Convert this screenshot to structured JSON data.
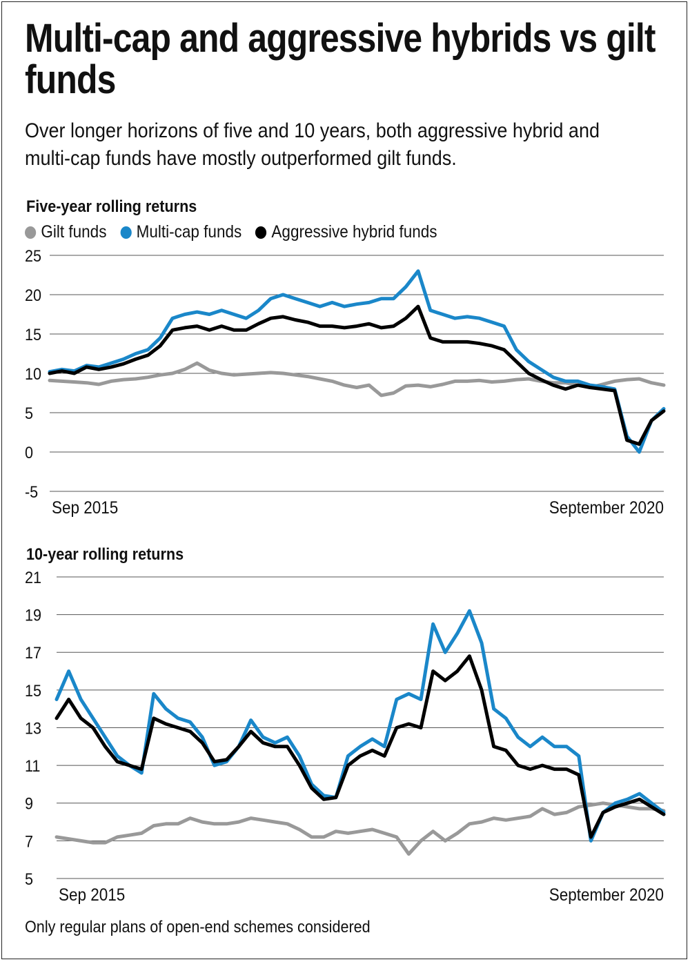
{
  "title": "Multi-cap and aggressive hybrids vs gilt funds",
  "subtitle": "Over longer horizons of five and 10 years, both aggressive hybrid and multi-cap funds have mostly outperformed gilt funds.",
  "footnote": "Only regular plans of open-end schemes considered",
  "legend": [
    {
      "name": "Gilt funds",
      "color": "#999999"
    },
    {
      "name": "Multi-cap funds",
      "color": "#1a87c9"
    },
    {
      "name": "Aggressive hybrid funds",
      "color": "#000000"
    }
  ],
  "chart_data": [
    {
      "type": "line",
      "title": "Five-year rolling returns",
      "x_start_label": "Sep 2015",
      "x_end_label": "September 2020",
      "ylim": [
        -5,
        25
      ],
      "yticks": [
        25,
        20,
        15,
        10,
        5,
        0,
        -5
      ],
      "grid": true,
      "legend_position": "top-left",
      "x": [
        0,
        0.02,
        0.04,
        0.06,
        0.08,
        0.1,
        0.12,
        0.14,
        0.16,
        0.18,
        0.2,
        0.22,
        0.24,
        0.26,
        0.28,
        0.3,
        0.32,
        0.34,
        0.36,
        0.38,
        0.4,
        0.42,
        0.44,
        0.46,
        0.48,
        0.5,
        0.52,
        0.54,
        0.56,
        0.58,
        0.6,
        0.62,
        0.64,
        0.66,
        0.68,
        0.7,
        0.72,
        0.74,
        0.76,
        0.78,
        0.8,
        0.82,
        0.84,
        0.86,
        0.88,
        0.9,
        0.92,
        0.94,
        0.96,
        0.98,
        1.0
      ],
      "series": [
        {
          "name": "Gilt funds",
          "color": "#999999",
          "values": [
            9.1,
            9.0,
            8.9,
            8.8,
            8.6,
            9.0,
            9.2,
            9.3,
            9.5,
            9.8,
            10.0,
            10.5,
            11.3,
            10.4,
            10.0,
            9.8,
            9.9,
            10.0,
            10.1,
            10.0,
            9.8,
            9.6,
            9.3,
            9.0,
            8.5,
            8.2,
            8.5,
            7.2,
            7.5,
            8.4,
            8.5,
            8.3,
            8.6,
            9.0,
            9.0,
            9.1,
            8.9,
            9.0,
            9.2,
            9.3,
            9.0,
            8.8,
            8.8,
            8.5,
            8.2,
            8.6,
            9.0,
            9.2,
            9.3,
            8.8,
            8.5
          ]
        },
        {
          "name": "Multi-cap funds",
          "color": "#1a87c9",
          "values": [
            10.2,
            10.5,
            10.3,
            11.0,
            10.8,
            11.3,
            11.8,
            12.5,
            13.0,
            14.5,
            17.0,
            17.5,
            17.8,
            17.5,
            18.0,
            17.5,
            17.0,
            18.0,
            19.5,
            20.0,
            19.5,
            19.0,
            18.5,
            19.0,
            18.5,
            18.8,
            19.0,
            19.5,
            19.5,
            21.0,
            23.0,
            18.0,
            17.5,
            17.0,
            17.2,
            17.0,
            16.5,
            16.0,
            13.0,
            11.5,
            10.5,
            9.5,
            9.0,
            9.0,
            8.5,
            8.3,
            8.0,
            2.0,
            0.0,
            4.0,
            5.5
          ]
        },
        {
          "name": "Aggressive hybrid funds",
          "color": "#000000",
          "values": [
            10.0,
            10.3,
            10.0,
            10.8,
            10.5,
            10.8,
            11.2,
            11.8,
            12.3,
            13.5,
            15.5,
            15.8,
            16.0,
            15.5,
            16.0,
            15.5,
            15.5,
            16.3,
            17.0,
            17.2,
            16.8,
            16.5,
            16.0,
            16.0,
            15.8,
            16.0,
            16.3,
            15.8,
            16.0,
            17.0,
            18.5,
            14.5,
            14.0,
            14.0,
            14.0,
            13.8,
            13.5,
            13.0,
            11.5,
            10.0,
            9.2,
            8.5,
            8.0,
            8.5,
            8.2,
            8.0,
            7.8,
            1.5,
            1.0,
            4.0,
            5.2
          ]
        }
      ]
    },
    {
      "type": "line",
      "title": "10-year rolling returns",
      "x_start_label": "Sep 2015",
      "x_end_label": "September 2020",
      "ylim": [
        5,
        21
      ],
      "yticks": [
        21,
        19,
        17,
        15,
        13,
        11,
        9,
        7,
        5
      ],
      "grid": true,
      "x": [
        0,
        0.02,
        0.04,
        0.06,
        0.08,
        0.1,
        0.12,
        0.14,
        0.16,
        0.18,
        0.2,
        0.22,
        0.24,
        0.26,
        0.28,
        0.3,
        0.32,
        0.34,
        0.36,
        0.38,
        0.4,
        0.42,
        0.44,
        0.46,
        0.48,
        0.5,
        0.52,
        0.54,
        0.56,
        0.58,
        0.6,
        0.62,
        0.64,
        0.66,
        0.68,
        0.7,
        0.72,
        0.74,
        0.76,
        0.78,
        0.8,
        0.82,
        0.84,
        0.86,
        0.88,
        0.9,
        0.92,
        0.94,
        0.96,
        0.98,
        1.0
      ],
      "series": [
        {
          "name": "Gilt funds",
          "color": "#999999",
          "values": [
            7.2,
            7.1,
            7.0,
            6.9,
            6.9,
            7.2,
            7.3,
            7.4,
            7.8,
            7.9,
            7.9,
            8.2,
            8.0,
            7.9,
            7.9,
            8.0,
            8.2,
            8.1,
            8.0,
            7.9,
            7.6,
            7.2,
            7.2,
            7.5,
            7.4,
            7.5,
            7.6,
            7.4,
            7.2,
            6.3,
            7.0,
            7.5,
            7.0,
            7.4,
            7.9,
            8.0,
            8.2,
            8.1,
            8.2,
            8.3,
            8.7,
            8.4,
            8.5,
            8.8,
            8.9,
            9.0,
            8.9,
            8.8,
            8.7,
            8.7,
            8.6
          ]
        },
        {
          "name": "Multi-cap funds",
          "color": "#1a87c9",
          "values": [
            14.5,
            16.0,
            14.5,
            13.5,
            12.5,
            11.5,
            11.0,
            10.6,
            14.8,
            14.0,
            13.5,
            13.3,
            12.5,
            11.0,
            11.2,
            12.0,
            13.4,
            12.5,
            12.2,
            12.5,
            11.5,
            10.0,
            9.4,
            9.3,
            11.5,
            12.0,
            12.4,
            12.0,
            14.5,
            14.8,
            14.5,
            18.5,
            17.0,
            18.0,
            19.2,
            17.5,
            14.0,
            13.5,
            12.5,
            12.0,
            12.5,
            12.0,
            12.0,
            11.5,
            7.0,
            8.5,
            9.0,
            9.2,
            9.5,
            9.0,
            8.5
          ]
        },
        {
          "name": "Aggressive hybrid funds",
          "color": "#000000",
          "values": [
            13.5,
            14.5,
            13.5,
            13.0,
            12.0,
            11.2,
            11.0,
            10.8,
            13.5,
            13.2,
            13.0,
            12.8,
            12.2,
            11.2,
            11.3,
            12.0,
            12.8,
            12.2,
            12.0,
            12.0,
            11.0,
            9.8,
            9.2,
            9.3,
            11.0,
            11.5,
            11.8,
            11.5,
            13.0,
            13.2,
            13.0,
            16.0,
            15.5,
            16.0,
            16.8,
            15.0,
            12.0,
            11.8,
            11.0,
            10.8,
            11.0,
            10.8,
            10.8,
            10.5,
            7.2,
            8.5,
            8.8,
            9.0,
            9.2,
            8.8,
            8.4
          ]
        }
      ]
    }
  ]
}
